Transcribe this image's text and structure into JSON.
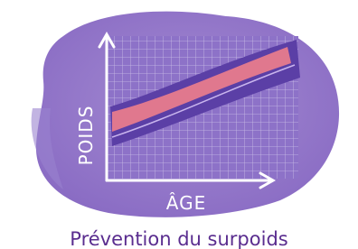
{
  "illustration": {
    "y_label": "POIDS",
    "x_label": "ÂGE"
  },
  "caption": "Prévention du surpoids"
}
